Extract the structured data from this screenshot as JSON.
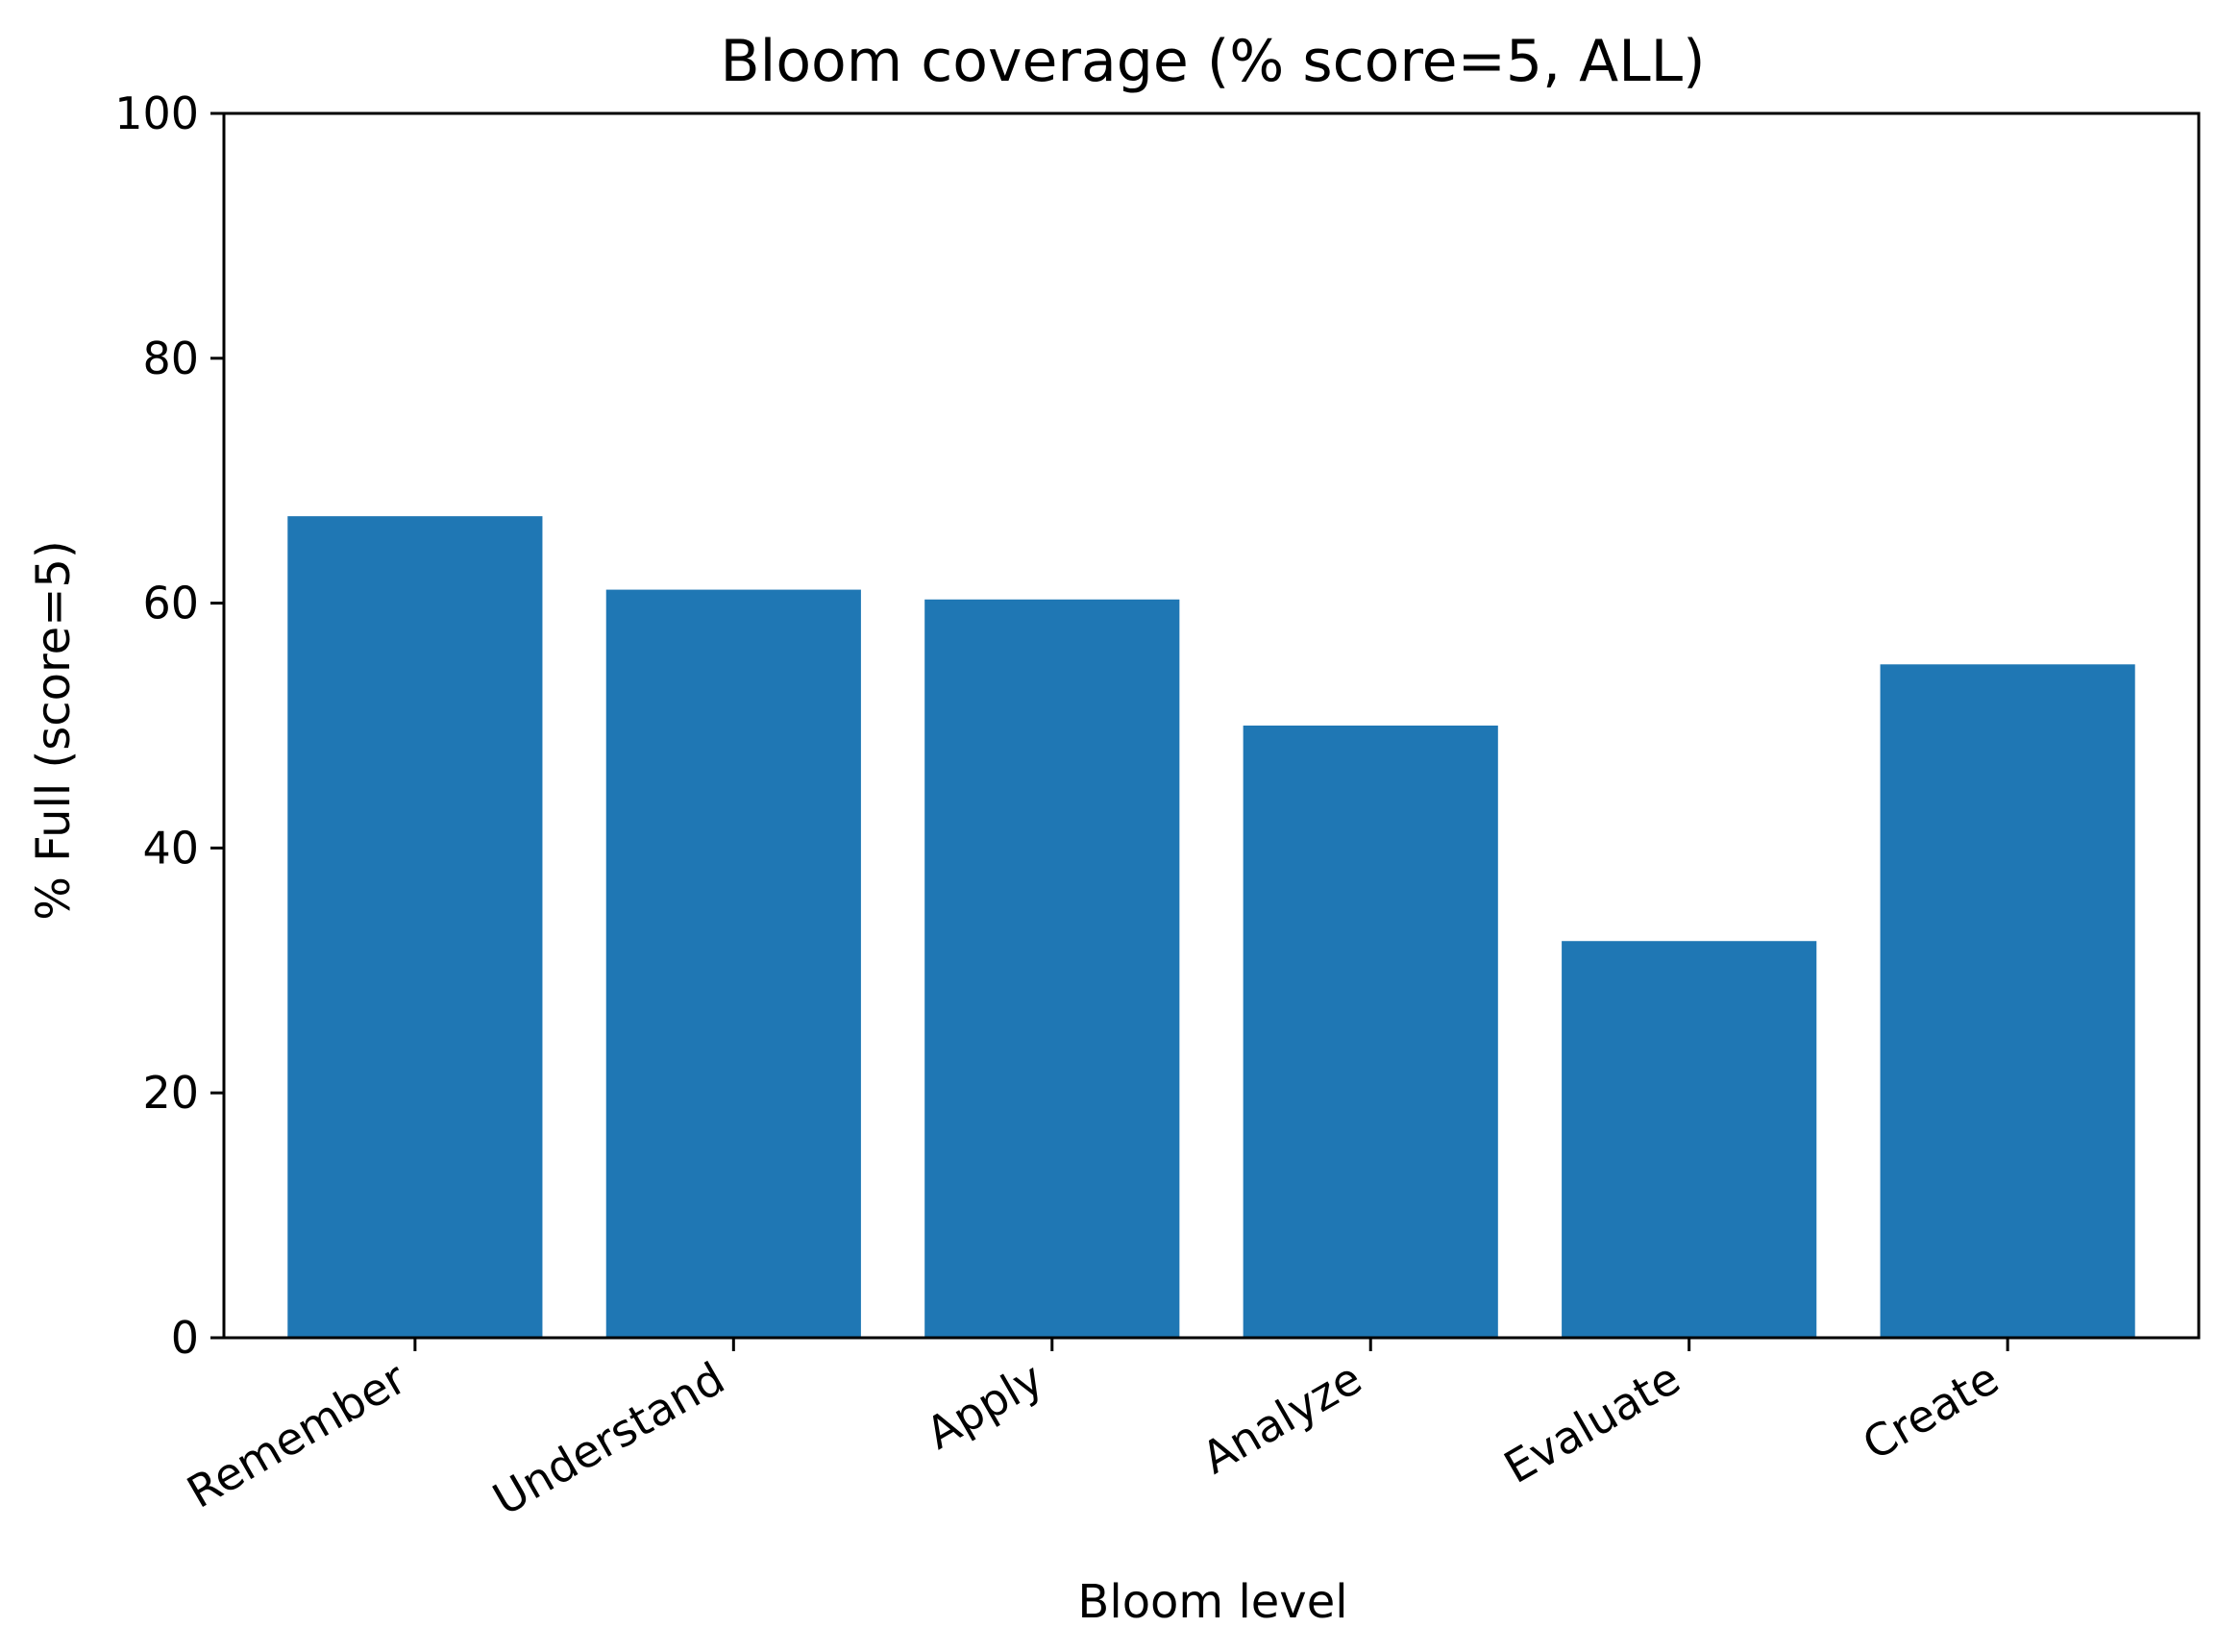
{
  "chart_data": {
    "type": "bar",
    "title": "Bloom coverage (% score=5, ALL)",
    "xlabel": "Bloom level",
    "ylabel": "% Full (score=5)",
    "categories": [
      "Remember",
      "Understand",
      "Apply",
      "Analyze",
      "Evaluate",
      "Create"
    ],
    "values": [
      67.1,
      61.1,
      60.3,
      50.0,
      32.4,
      55.0
    ],
    "ylim": [
      0,
      100
    ],
    "yticks": [
      0,
      20,
      40,
      60,
      80,
      100
    ],
    "ytick_labels": [
      "0",
      "20",
      "40",
      "60",
      "80",
      "100"
    ],
    "grid": false,
    "legend": "none",
    "colors": {
      "bar": "#1f77b4",
      "axes": "#000000",
      "background": "#ffffff"
    }
  }
}
